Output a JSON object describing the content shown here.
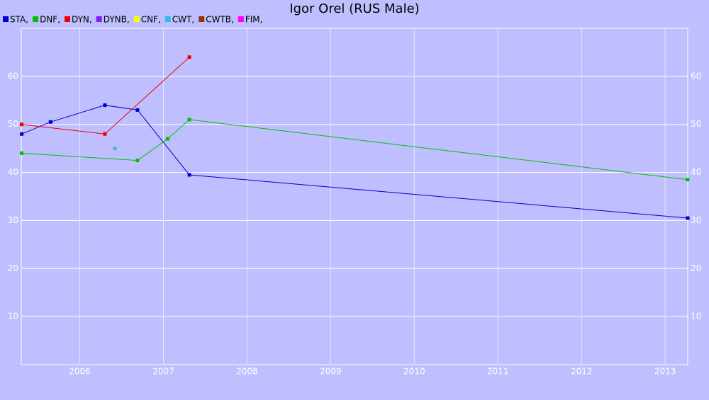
{
  "chart_data": {
    "type": "line",
    "title": "Igor Orel (RUS Male)",
    "legend_separator": ",",
    "xlim": [
      2005.3,
      2013.27
    ],
    "xticks": [
      2006,
      2007,
      2008,
      2009,
      2010,
      2011,
      2012,
      2013
    ],
    "ylim": [
      0,
      70
    ],
    "yticks": [
      10,
      20,
      30,
      40,
      50,
      60
    ],
    "grid": true,
    "series": [
      {
        "name": "STA",
        "color": "#0000cc",
        "x": [
          2005.305,
          2005.65,
          2006.3,
          2006.69,
          2007.31,
          2013.27
        ],
        "values": [
          48,
          50.5,
          54,
          53,
          39.5,
          30.5
        ]
      },
      {
        "name": "DNF",
        "color": "#00c000",
        "x": [
          2005.305,
          2006.69,
          2007.05,
          2007.31,
          2013.27
        ],
        "values": [
          44,
          42.5,
          47,
          51,
          38.5
        ]
      },
      {
        "name": "DYN",
        "color": "#ee0000",
        "x": [
          2005.305,
          2006.3,
          2007.31
        ],
        "values": [
          50,
          48,
          64
        ]
      },
      {
        "name": "DYNB",
        "color": "#7a1fff",
        "x": [],
        "values": []
      },
      {
        "name": "CNF",
        "color": "#ffff00",
        "x": [],
        "values": []
      },
      {
        "name": "CWT",
        "color": "#33bbdd",
        "x": [
          2006.42
        ],
        "values": [
          45
        ]
      },
      {
        "name": "CWTB",
        "color": "#993300",
        "x": [],
        "values": []
      },
      {
        "name": "FIM",
        "color": "#ff00ff",
        "x": [],
        "values": []
      }
    ]
  }
}
